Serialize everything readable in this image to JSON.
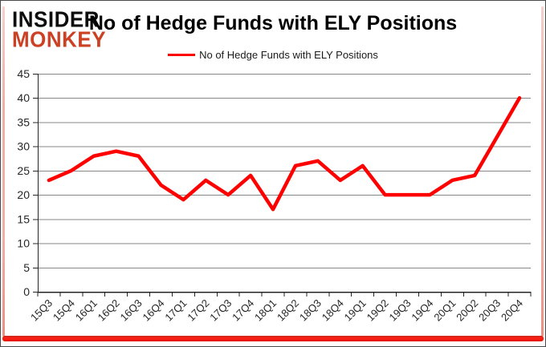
{
  "logo": {
    "line1": "INSIDER",
    "line2": "MONKEY",
    "accent_color": "#cc4124"
  },
  "header": {
    "title": "No of Hedge Funds with ELY Positions"
  },
  "legend": {
    "label": "No of Hedge Funds with ELY Positions",
    "line_color": "#ff0000"
  },
  "chart_data": {
    "type": "line",
    "title": "No of Hedge Funds with ELY Positions",
    "categories": [
      "15Q3",
      "15Q4",
      "16Q1",
      "16Q2",
      "16Q3",
      "16Q4",
      "17Q1",
      "17Q2",
      "17Q3",
      "17Q4",
      "18Q1",
      "18Q2",
      "18Q3",
      "18Q4",
      "19Q1",
      "19Q2",
      "19Q3",
      "19Q4",
      "20Q1",
      "20Q2",
      "20Q3",
      "20Q4"
    ],
    "series": [
      {
        "name": "No of Hedge Funds with ELY Positions",
        "color": "#ff0000",
        "values": [
          23,
          25,
          28,
          29,
          28,
          22,
          19,
          23,
          20,
          24,
          17,
          26,
          27,
          23,
          26,
          20,
          20,
          20,
          23,
          24,
          32,
          40
        ]
      }
    ],
    "xlabel": "",
    "ylabel": "",
    "ylim": [
      0,
      45
    ],
    "yticks": [
      0,
      5,
      10,
      15,
      20,
      25,
      30,
      35,
      40,
      45
    ],
    "grid": true,
    "legend_position": "top-center",
    "gridline_color": "#878787",
    "axis_color": "#262626",
    "tick_label_color": "#262626"
  }
}
